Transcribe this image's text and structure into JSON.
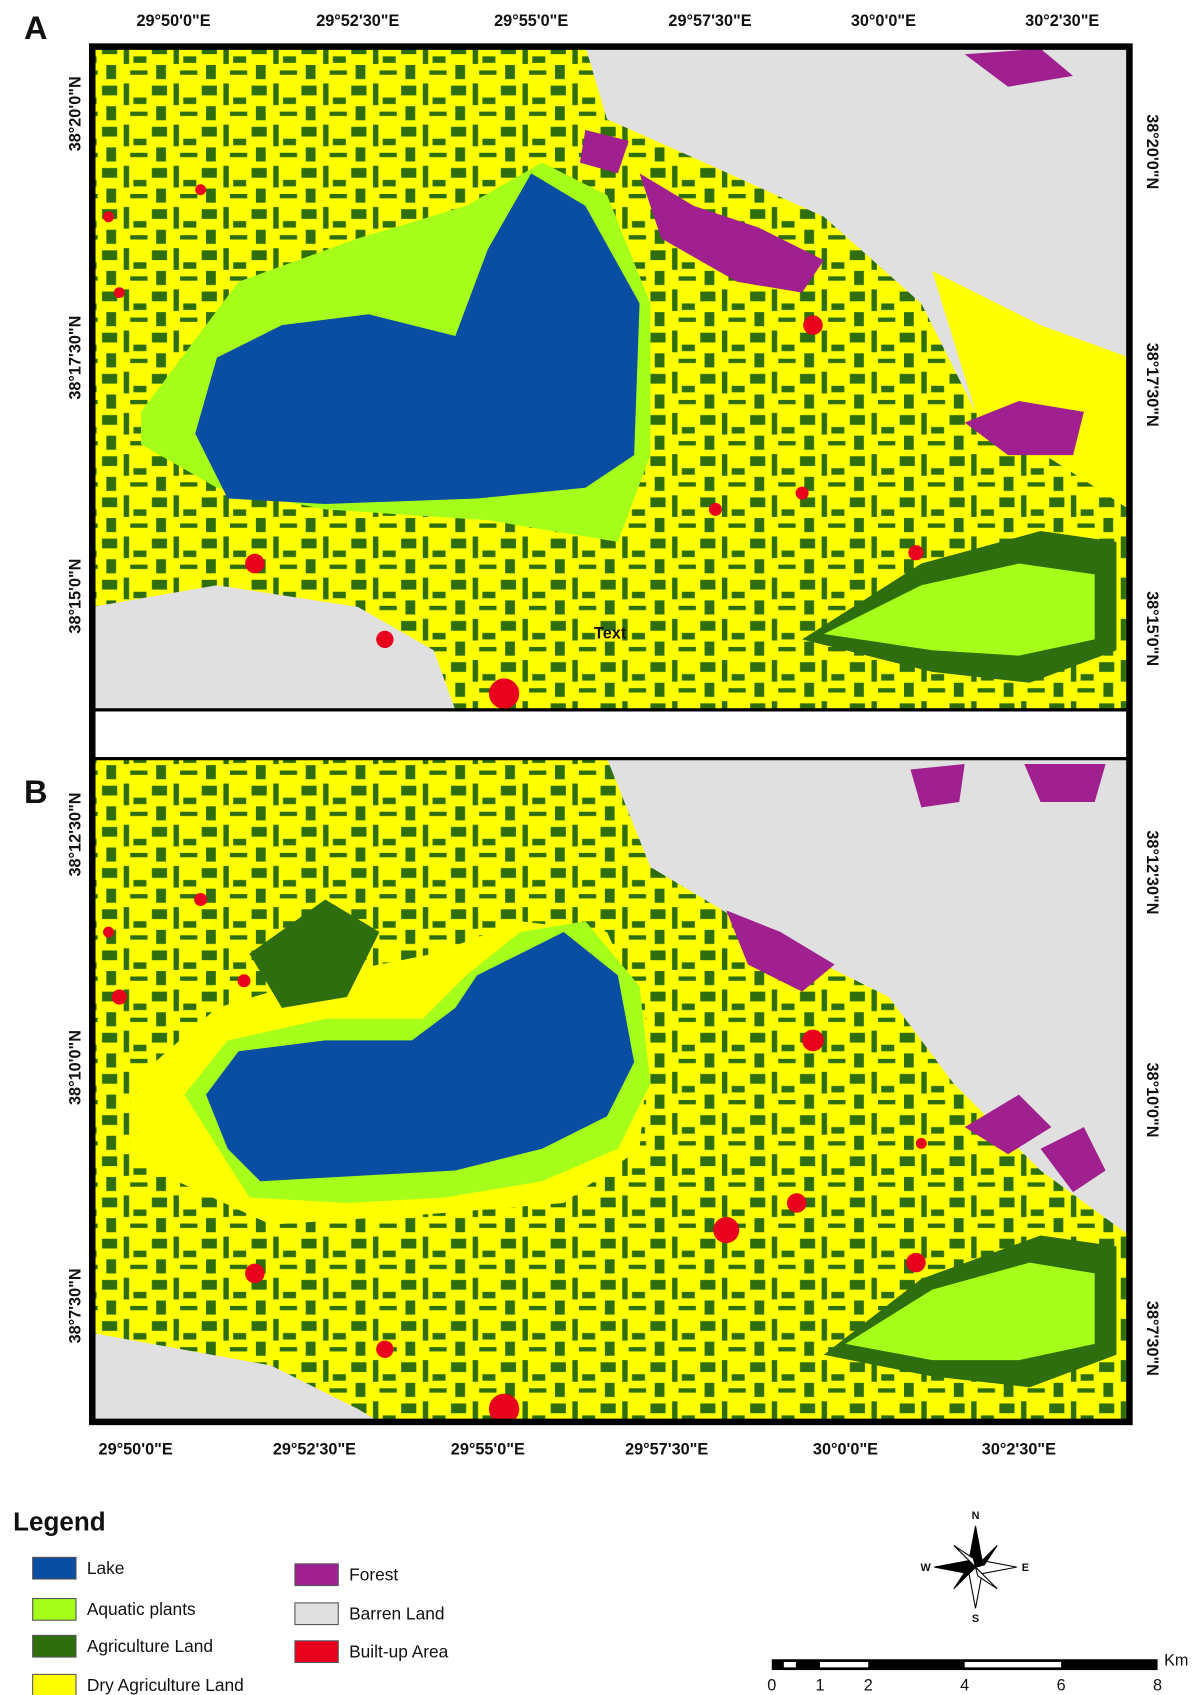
{
  "panels": [
    {
      "label": "A",
      "top_labels": [
        "29°50'0\"E",
        "29°52'30\"E",
        "29°55'0\"E",
        "29°57'30\"E",
        "30°0'0\"E",
        "30°2'30\"E"
      ],
      "left_labels": [
        "38°20'0\"N",
        "38°17'30\"N",
        "38°15'0\"N"
      ],
      "right_labels": [
        "38°20'0\"N",
        "38°17'30\"N",
        "38°15'0\"N"
      ],
      "map_note": "Text"
    },
    {
      "label": "B",
      "bottom_labels": [
        "29°50'0\"E",
        "29°52'30\"E",
        "29°55'0\"E",
        "29°57'30\"E",
        "30°0'0\"E",
        "30°2'30\"E"
      ],
      "left_labels": [
        "38°12'30\"N",
        "38°10'0\"N",
        "38°7'30\"N"
      ],
      "right_labels": [
        "38°12'30\"N",
        "38°10'0\"N",
        "38°7'30\"N"
      ]
    }
  ],
  "legend": {
    "title": "Legend",
    "items": [
      {
        "name": "Lake",
        "color": "#0a4ea3"
      },
      {
        "name": "Aquatic plants",
        "color": "#a6ff1a"
      },
      {
        "name": "Agriculture Land",
        "color": "#2e6e0e"
      },
      {
        "name": "Dry Agriculture Land",
        "color": "#ffff00"
      },
      {
        "name": "Forest",
        "color": "#a0208f"
      },
      {
        "name": "Barren Land",
        "color": "#e0e0e0"
      },
      {
        "name": "Built-up Area",
        "color": "#e8001c"
      }
    ]
  },
  "compass": {
    "n": "N",
    "s": "S",
    "e": "E",
    "w": "W"
  },
  "scale_bar": {
    "ticks": [
      0,
      1,
      2,
      4,
      6,
      8
    ],
    "unit": "Km"
  }
}
